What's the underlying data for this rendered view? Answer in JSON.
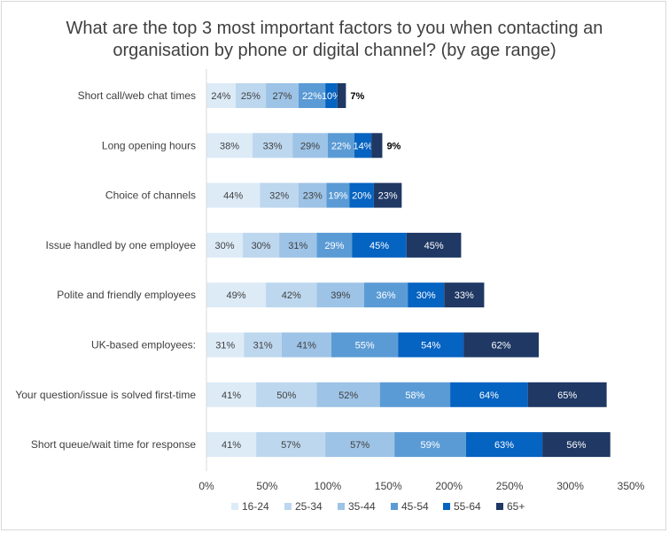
{
  "chart_data": {
    "type": "bar",
    "orientation": "horizontal",
    "stacked": true,
    "title_lines": [
      "What are the top 3 most important factors to you when contacting an",
      "organisation by phone or digital channel? (by age range)"
    ],
    "categories": [
      "Short call/web chat times",
      "Long opening hours",
      "Choice of channels",
      "Issue handled by one employee",
      "Polite and friendly employees",
      "UK-based employees:",
      "Your question/issue is solved first-time",
      "Short queue/wait time for response"
    ],
    "series": [
      {
        "name": "16-24",
        "color": "#ddebf7",
        "label_color": "#404040",
        "values": [
          24,
          38,
          44,
          30,
          49,
          31,
          41,
          41
        ]
      },
      {
        "name": "25-34",
        "color": "#bdd7ee",
        "label_color": "#404040",
        "values": [
          25,
          33,
          32,
          30,
          42,
          31,
          50,
          57
        ]
      },
      {
        "name": "35-44",
        "color": "#9dc3e6",
        "label_color": "#404040",
        "values": [
          27,
          29,
          23,
          31,
          39,
          41,
          52,
          57
        ]
      },
      {
        "name": "45-54",
        "color": "#5b9bd5",
        "label_color": "#ffffff",
        "values": [
          22,
          22,
          19,
          29,
          36,
          55,
          58,
          59
        ]
      },
      {
        "name": "55-64",
        "color": "#0563c1",
        "label_color": "#ffffff",
        "values": [
          10,
          14,
          20,
          45,
          30,
          54,
          64,
          63
        ]
      },
      {
        "name": "65+",
        "color": "#1f3864",
        "label_color": "#ffffff",
        "values": [
          7,
          9,
          23,
          45,
          33,
          62,
          65,
          56
        ]
      }
    ],
    "x_ticks": [
      "0%",
      "50%",
      "100%",
      "150%",
      "200%",
      "250%",
      "300%",
      "350%"
    ],
    "xlim": [
      0,
      350
    ],
    "unit": "%",
    "grid": false,
    "legend_position": "bottom"
  }
}
